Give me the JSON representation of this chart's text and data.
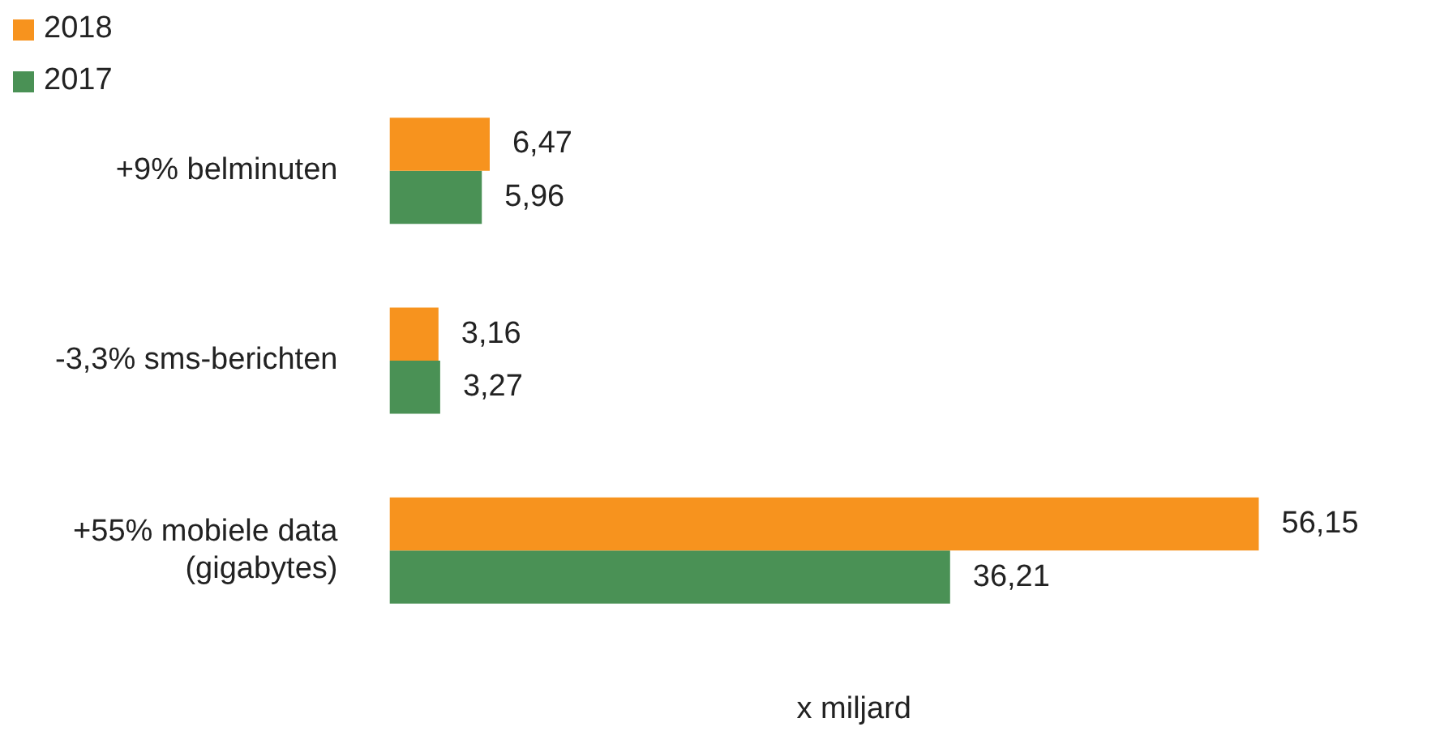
{
  "chart_data": {
    "type": "bar",
    "orientation": "horizontal",
    "xlabel": "x miljard",
    "legend": "top left",
    "categories": [
      "+9% belminuten",
      "-3,3% sms-berichten",
      "+55% mobiele data (gigabytes)"
    ],
    "series": [
      {
        "name": "2018",
        "color": "#f7931e",
        "values": [
          6.47,
          3.16,
          56.15
        ],
        "value_labels": [
          "6,47",
          "3,16",
          "56,15"
        ]
      },
      {
        "name": "2017",
        "color": "#4a9155",
        "values": [
          5.96,
          3.27,
          36.21
        ],
        "value_labels": [
          "5,96",
          "3,27",
          "36,21"
        ]
      }
    ]
  }
}
